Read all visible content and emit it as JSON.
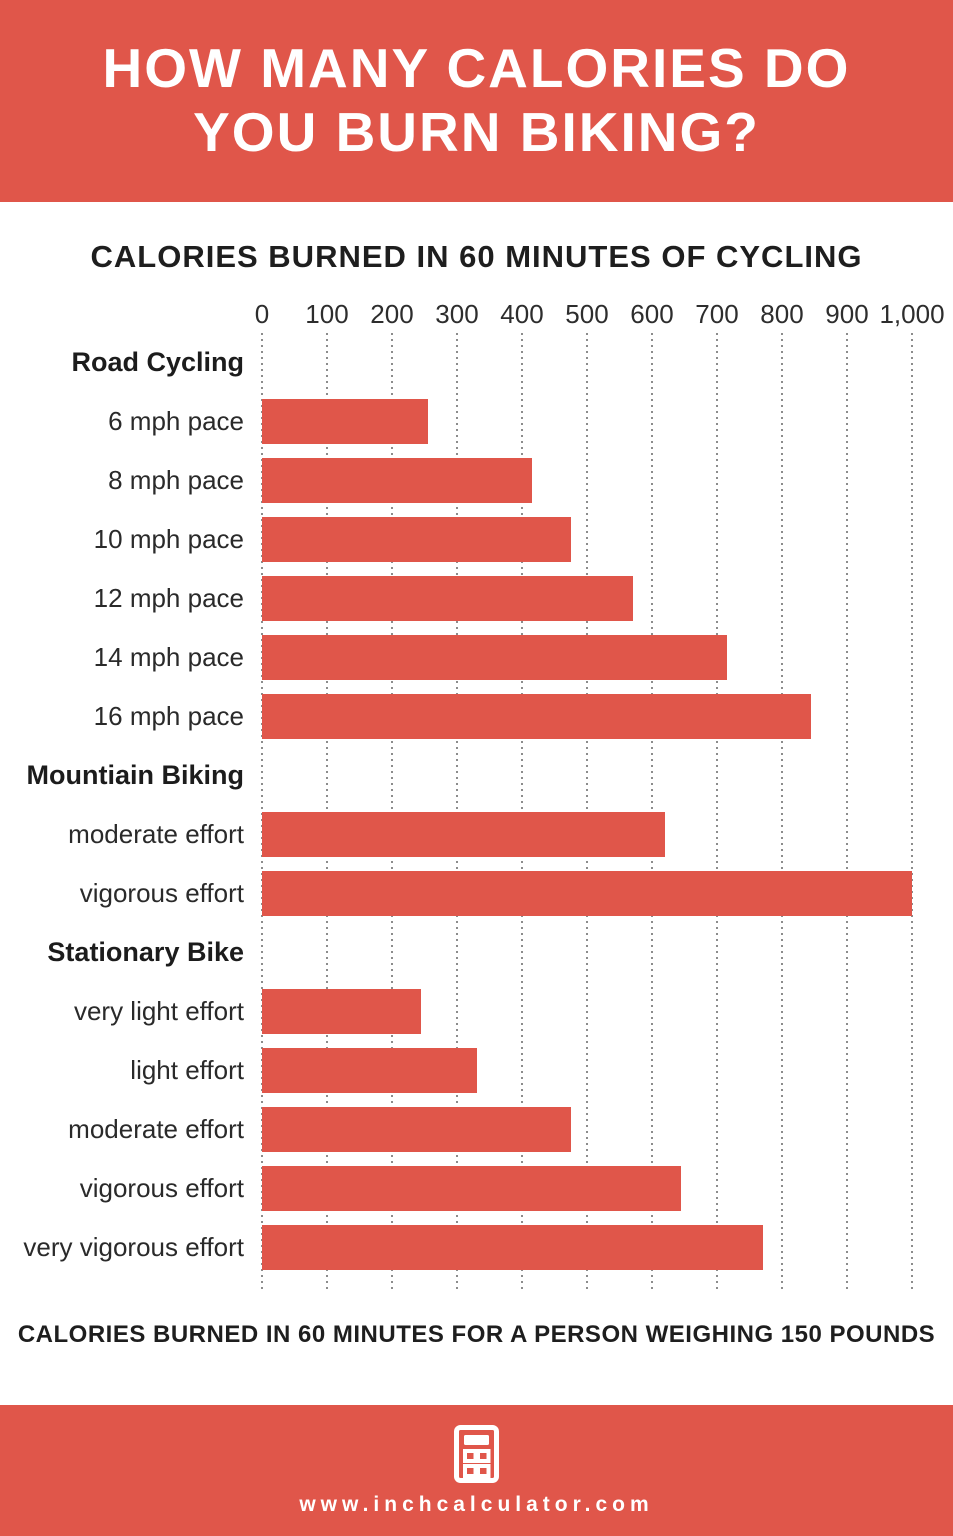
{
  "header": {
    "title_line1": "HOW MANY CALORIES DO",
    "title_line2": "YOU BURN BIKING?",
    "background_color": "#e0564a",
    "text_color": "#ffffff"
  },
  "chart_data": {
    "type": "bar",
    "orientation": "horizontal",
    "title": "CALORIES BURNED IN 60 MINUTES OF CYCLING",
    "xlabel": "",
    "ylabel": "",
    "xlim": [
      0,
      1000
    ],
    "xticks": [
      0,
      100,
      200,
      300,
      400,
      500,
      600,
      700,
      800,
      900,
      1000
    ],
    "xtick_labels": [
      "0",
      "100",
      "200",
      "300",
      "400",
      "500",
      "600",
      "700",
      "800",
      "900",
      "1,000"
    ],
    "grid": "vertical-dotted",
    "legend": "none",
    "bar_color": "#e0564a",
    "groups": [
      {
        "label": "Road Cycling",
        "items": [
          {
            "label": "6 mph pace",
            "value": 255
          },
          {
            "label": "8 mph pace",
            "value": 415
          },
          {
            "label": "10 mph pace",
            "value": 475
          },
          {
            "label": "12 mph pace",
            "value": 570
          },
          {
            "label": "14 mph pace",
            "value": 715
          },
          {
            "label": "16 mph pace",
            "value": 845
          }
        ]
      },
      {
        "label": "Mountiain Biking",
        "items": [
          {
            "label": "moderate effort",
            "value": 620
          },
          {
            "label": "vigorous effort",
            "value": 1000
          }
        ]
      },
      {
        "label": "Stationary Bike",
        "items": [
          {
            "label": "very light effort",
            "value": 245
          },
          {
            "label": "light effort",
            "value": 330
          },
          {
            "label": "moderate effort",
            "value": 475
          },
          {
            "label": "vigorous effort",
            "value": 645
          },
          {
            "label": "very vigorous effort",
            "value": 770
          }
        ]
      }
    ]
  },
  "footnote": "CALORIES BURNED IN 60 MINUTES FOR A PERSON WEIGHING 150 POUNDS",
  "footer": {
    "url": "www.inchcalculator.com",
    "icon": "calculator-icon",
    "background_color": "#e0564a"
  }
}
